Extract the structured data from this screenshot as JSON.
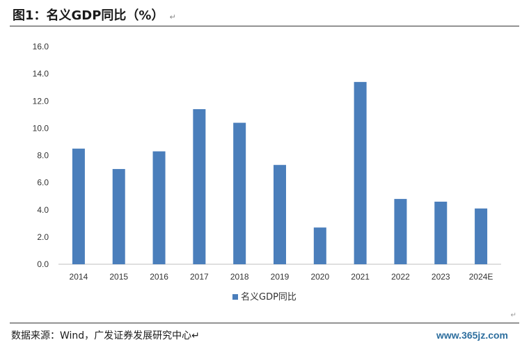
{
  "figure": {
    "title": "图1：名义GDP同比（%）",
    "return_mark": "↵",
    "source": "数据来源：Wind，广发证券发展研究中心↵",
    "watermark": "www.365jz.com",
    "corner_mark": "↵"
  },
  "chart_data": {
    "type": "bar",
    "categories": [
      "2014",
      "2015",
      "2016",
      "2017",
      "2018",
      "2019",
      "2020",
      "2021",
      "2022",
      "2023",
      "2024E"
    ],
    "series": [
      {
        "name": "名义GDP同比",
        "values": [
          8.5,
          7.0,
          8.3,
          11.4,
          10.4,
          7.3,
          2.7,
          13.4,
          4.8,
          4.6,
          4.1
        ],
        "color": "#4a7ebb"
      }
    ],
    "ylim": [
      0,
      16
    ],
    "yticks": [
      "0.0",
      "2.0",
      "4.0",
      "6.0",
      "8.0",
      "10.0",
      "12.0",
      "14.0",
      "16.0"
    ],
    "legend_position": "bottom",
    "grid": false
  }
}
